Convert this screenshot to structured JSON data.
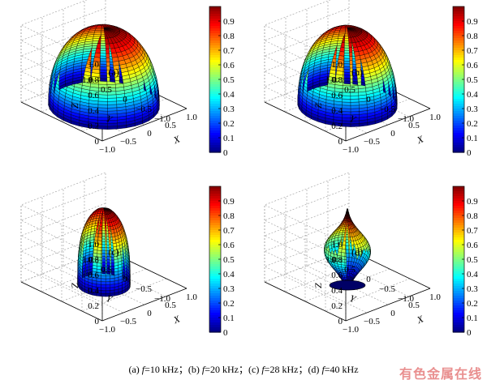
{
  "chart_data": [
    {
      "type": "surface3d",
      "panel_label": "(a)",
      "xlabel": "X",
      "ylabel": "Y",
      "zlabel": "Z",
      "xlim": [
        -1,
        1
      ],
      "ylim": [
        -1,
        1
      ],
      "zlim": [
        0,
        1
      ],
      "x_ticks": [
        "−1.0",
        "−0.5",
        "0",
        "0.5",
        "1.0"
      ],
      "y_ticks": [
        "1.0",
        "0.5",
        "0",
        "−0.5",
        "−1.0"
      ],
      "z_ticks": [
        "0",
        "0.2",
        "0.4",
        "0.6",
        "0.8",
        "1.0"
      ],
      "colorbar": {
        "ticks": [
          "0",
          "0.1",
          "0.2",
          "0.3",
          "0.4",
          "0.5",
          "0.6",
          "0.7",
          "0.8",
          "0.9"
        ],
        "range": [
          0,
          1
        ]
      },
      "shape": "dome",
      "max_radius": 0.95,
      "height": 1.0
    },
    {
      "type": "surface3d",
      "panel_label": "(b)",
      "xlabel": "X",
      "ylabel": "Y",
      "zlabel": "Z",
      "xlim": [
        -1,
        1
      ],
      "ylim": [
        -1,
        1
      ],
      "zlim": [
        0,
        1
      ],
      "x_ticks": [
        "−1.0",
        "−0.5",
        "0",
        "0.5",
        "1.0"
      ],
      "y_ticks": [
        "1.0",
        "0.5",
        "0",
        "−0.5",
        "−1.0"
      ],
      "z_ticks": [
        "0",
        "0.2",
        "0.4",
        "0.6",
        "0.8",
        "1.0"
      ],
      "colorbar": {
        "ticks": [
          "0",
          "0.1",
          "0.2",
          "0.3",
          "0.4",
          "0.5",
          "0.6",
          "0.7",
          "0.8",
          "0.9"
        ],
        "range": [
          0,
          1
        ]
      },
      "shape": "dome",
      "max_radius": 0.85,
      "height": 1.0
    },
    {
      "type": "surface3d",
      "panel_label": "(c)",
      "xlabel": "X",
      "ylabel": "Y",
      "zlabel": "Z",
      "xlim": [
        -1,
        1
      ],
      "ylim": [
        -1,
        1
      ],
      "zlim": [
        0,
        1
      ],
      "x_ticks": [
        "−1.0",
        "−0.5",
        "0",
        "0.5",
        "1.0"
      ],
      "y_ticks": [
        "1.0",
        "0.5",
        "0",
        "−0.5",
        "−1.0"
      ],
      "z_ticks": [
        "0",
        "0.2",
        "0.4",
        "0.6",
        "0.8",
        "1.0"
      ],
      "colorbar": {
        "ticks": [
          "0",
          "0.1",
          "0.2",
          "0.3",
          "0.4",
          "0.5",
          "0.6",
          "0.7",
          "0.8",
          "0.9"
        ],
        "range": [
          0,
          1
        ]
      },
      "shape": "bullet",
      "max_radius": 0.45,
      "height": 1.0
    },
    {
      "type": "surface3d",
      "panel_label": "(d)",
      "xlabel": "X",
      "ylabel": "Y",
      "zlabel": "Z",
      "xlim": [
        -1,
        1
      ],
      "ylim": [
        -1,
        1
      ],
      "zlim": [
        0,
        1
      ],
      "x_ticks": [
        "−1.0",
        "−0.5",
        "0",
        "0.5",
        "1.0"
      ],
      "y_ticks": [
        "1.0",
        "0.5",
        "0",
        "−0.5",
        "−1.0"
      ],
      "z_ticks": [
        "0",
        "0.2",
        "0.4",
        "0.6",
        "0.8",
        "1.0"
      ],
      "colorbar": {
        "ticks": [
          "0",
          "0.1",
          "0.2",
          "0.3",
          "0.4",
          "0.5",
          "0.6",
          "0.7",
          "0.8",
          "0.9"
        ],
        "range": [
          0,
          1
        ]
      },
      "shape": "balloon",
      "max_radius": 0.4,
      "height": 1.0
    }
  ],
  "caption": {
    "a_prefix": "(a) ",
    "a_var": "f",
    "a_value": "=10 kHz",
    "b_prefix": "；(b) ",
    "b_var": "f",
    "b_value": "=20 kHz",
    "c_prefix": "；(c) ",
    "c_var": "f",
    "c_value": "=28 kHz",
    "d_prefix": "；(d) ",
    "d_var": "f",
    "d_value": "=40 kHz"
  },
  "watermark": "有色金属在线",
  "colors": {
    "colormap": "jet",
    "mesh_line": "#000000",
    "grid": "#9a9a9a"
  }
}
